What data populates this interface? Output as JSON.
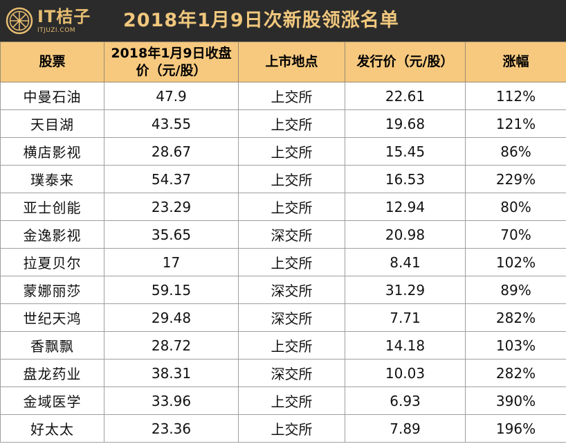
{
  "banner": {
    "logo_main": "IT桔子",
    "logo_sub": "ITJUZI.COM",
    "title": "2018年1月9日次新股领涨名单"
  },
  "table": {
    "headers": {
      "stock": "股票",
      "close_price_line1": "2018年1月9日收盘",
      "close_price_line2": "价（元/股）",
      "exchange": "上市地点",
      "issue_price": "发行价（元/股）",
      "gain": "涨幅"
    },
    "rows": [
      {
        "stock": "中曼石油",
        "close": "47.9",
        "exchange": "上交所",
        "issue": "22.61",
        "gain": "112%"
      },
      {
        "stock": "天目湖",
        "close": "43.55",
        "exchange": "上交所",
        "issue": "19.68",
        "gain": "121%"
      },
      {
        "stock": "横店影视",
        "close": "28.67",
        "exchange": "上交所",
        "issue": "15.45",
        "gain": "86%"
      },
      {
        "stock": "璞泰来",
        "close": "54.37",
        "exchange": "上交所",
        "issue": "16.53",
        "gain": "229%"
      },
      {
        "stock": "亚士创能",
        "close": "23.29",
        "exchange": "上交所",
        "issue": "12.94",
        "gain": "80%"
      },
      {
        "stock": "金逸影视",
        "close": "35.65",
        "exchange": "深交所",
        "issue": "20.98",
        "gain": "70%"
      },
      {
        "stock": "拉夏贝尔",
        "close": "17",
        "exchange": "上交所",
        "issue": "8.41",
        "gain": "102%"
      },
      {
        "stock": "蒙娜丽莎",
        "close": "59.15",
        "exchange": "深交所",
        "issue": "31.29",
        "gain": "89%"
      },
      {
        "stock": "世纪天鸿",
        "close": "29.48",
        "exchange": "深交所",
        "issue": "7.71",
        "gain": "282%"
      },
      {
        "stock": "香飘飘",
        "close": "28.72",
        "exchange": "上交所",
        "issue": "14.18",
        "gain": "103%"
      },
      {
        "stock": "盘龙药业",
        "close": "38.31",
        "exchange": "深交所",
        "issue": "10.03",
        "gain": "282%"
      },
      {
        "stock": "金域医学",
        "close": "33.96",
        "exchange": "上交所",
        "issue": "6.93",
        "gain": "390%"
      },
      {
        "stock": "好太太",
        "close": "23.36",
        "exchange": "上交所",
        "issue": "7.89",
        "gain": "196%"
      }
    ]
  },
  "colors": {
    "banner_bg": "#2b2b2b",
    "banner_text": "#f0c77d",
    "header_bg": "#f6c97f",
    "border": "#9e9e9e"
  },
  "icons": {
    "logo": "orange-slice-icon"
  }
}
